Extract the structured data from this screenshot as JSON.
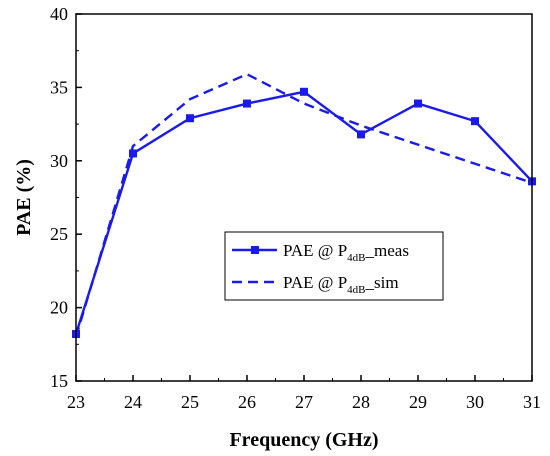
{
  "chart_data": {
    "type": "line",
    "title": "",
    "xlabel": "Frequency (GHz)",
    "ylabel": "PAE (%)",
    "xlim": [
      23,
      31
    ],
    "ylim": [
      15,
      40
    ],
    "xticks": [
      23,
      24,
      25,
      26,
      27,
      28,
      29,
      30,
      31
    ],
    "yticks": [
      15,
      20,
      25,
      30,
      35,
      40
    ],
    "grid": false,
    "legend_position": "lower-center",
    "colors": {
      "series": "#1a1aeb",
      "axis": "#000000"
    },
    "series": [
      {
        "name": "PAE @ P4dB_meas",
        "legend_main": "PAE @ P",
        "legend_sub": "4dB",
        "legend_suffix": "_meas",
        "style": "solid",
        "marker": "square",
        "x": [
          23,
          24,
          25,
          26,
          27,
          28,
          29,
          30,
          31
        ],
        "y": [
          18.2,
          30.5,
          32.9,
          33.9,
          34.7,
          31.8,
          33.9,
          32.7,
          28.6
        ]
      },
      {
        "name": "PAE @ P4dB_sim",
        "legend_main": "PAE @ P",
        "legend_sub": "4dB",
        "legend_suffix": "_sim",
        "style": "dashed",
        "marker": "none",
        "x": [
          23,
          24,
          25,
          26,
          27,
          28,
          29,
          30,
          31
        ],
        "y": [
          18.0,
          31.0,
          34.2,
          35.9,
          33.9,
          32.4,
          31.1,
          29.8,
          28.5
        ]
      }
    ]
  }
}
